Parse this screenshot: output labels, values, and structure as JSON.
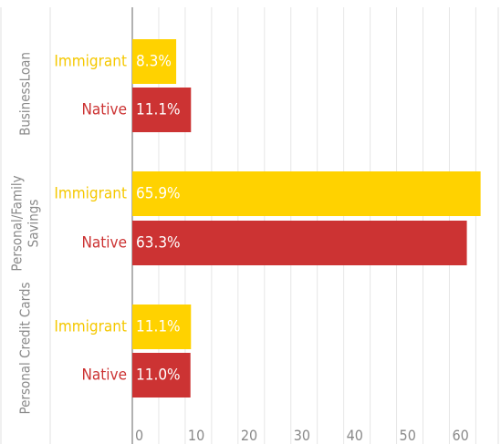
{
  "chart_data": {
    "type": "bar",
    "orientation": "horizontal",
    "categories": [
      "BusinessLoan",
      "Personal/Family Savings",
      "Personal Credit Cards"
    ],
    "category_lines": [
      [
        "BusinessLoan"
      ],
      [
        "Personal/Family",
        "Savings"
      ],
      [
        "Personal Credit Cards"
      ]
    ],
    "series": [
      {
        "name": "Immigrant",
        "color": "#ffd200",
        "label_color": "#f5c800",
        "values": [
          8.3,
          65.9,
          11.1
        ],
        "value_labels": [
          "8.3%",
          "65.9%",
          "11.1%"
        ]
      },
      {
        "name": "Native",
        "color": "#cc3333",
        "label_color": "#cc3333",
        "values": [
          11.1,
          63.3,
          11.0
        ],
        "value_labels": [
          "11.1%",
          "63.3%",
          "11.0%"
        ]
      }
    ],
    "x_ticks": [
      0,
      10,
      20,
      30,
      40,
      50,
      60
    ],
    "x_tick_labels": [
      "0",
      "10",
      "20",
      "30",
      "40",
      "50",
      "60"
    ],
    "xlim": [
      0,
      67
    ],
    "grid": true,
    "title": "",
    "xlabel": "",
    "ylabel": ""
  }
}
